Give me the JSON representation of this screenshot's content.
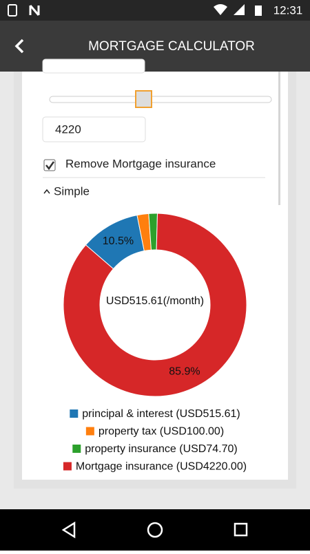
{
  "status_bar": {
    "time": "12:31"
  },
  "header": {
    "title": "MORTGAGE CALCULATOR"
  },
  "form": {
    "amount_input": "4220",
    "checkbox_label": "Remove Mortgage insurance",
    "section_toggle": "Simple"
  },
  "chart_data": {
    "type": "pie",
    "donut": true,
    "center_label": "USD515.61(/month)",
    "categories": [
      "principal & interest (USD515.61)",
      "property tax (USD100.00)",
      "property insurance (USD74.70)",
      "Mortgage insurance (USD4220.00)"
    ],
    "values": [
      10.5,
      2.04,
      1.52,
      85.94
    ],
    "value_labels": [
      "10.5%",
      null,
      null,
      "85.9%"
    ],
    "colors": [
      "#1f77b4",
      "#ff7f0e",
      "#2ca02c",
      "#d62728"
    ]
  }
}
